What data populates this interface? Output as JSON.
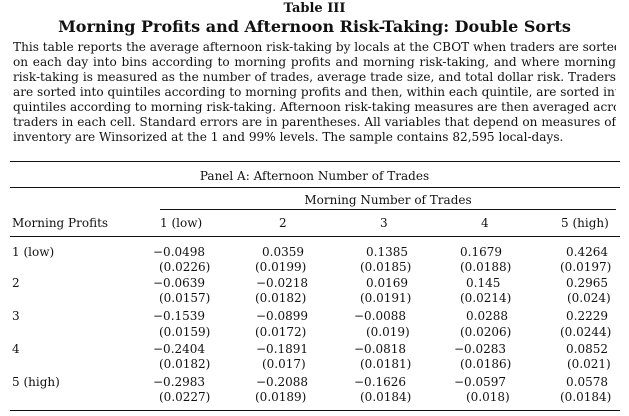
{
  "header": {
    "label": "Table III",
    "title": "Morning Profits and Afternoon Risk-Taking: Double Sorts"
  },
  "caption": [
    "This table reports the average afternoon risk-taking by locals at the CBOT when traders are sorted",
    "on each day into bins according to morning profits and morning risk-taking, and where morning",
    "risk-taking is measured as the number of trades, average trade size, and total dollar risk. Traders",
    "are sorted into quintiles according to morning profits and then, within each quintile, are sorted into",
    "quintiles according to morning risk-taking. Afternoon risk-taking measures are then averaged across",
    "traders in each cell. Standard errors are in parentheses. All variables that depend on measures of",
    "inventory are Winsorized at the 1 and 99% levels. The sample contains 82,595 local-days."
  ],
  "panel": {
    "title": "Panel A: Afternoon Number of Trades",
    "column_group": "Morning Number of Trades",
    "row_header": "Morning Profits",
    "columns": [
      "1 (low)",
      "2",
      "3",
      "4",
      "5 (high)"
    ],
    "rows": [
      {
        "label": "1 (low)",
        "values": [
          "−0.0498",
          "0.0359",
          "0.1385",
          "0.1679",
          "0.4264"
        ],
        "errors": [
          "(0.0226)",
          "(0.0199)",
          "(0.0185)",
          "(0.0188)",
          "(0.0197)"
        ]
      },
      {
        "label": "2",
        "values": [
          "−0.0639",
          "−0.0218",
          "0.0169",
          "0.145",
          "0.2965"
        ],
        "errors": [
          "(0.0157)",
          "(0.0182)",
          "(0.0191)",
          "(0.0214)",
          "(0.024)"
        ]
      },
      {
        "label": "3",
        "values": [
          "−0.1539",
          "−0.0899",
          "−0.0088",
          "0.0288",
          "0.2229"
        ],
        "errors": [
          "(0.0159)",
          "(0.0172)",
          "(0.019)",
          "(0.0206)",
          "(0.0244)"
        ]
      },
      {
        "label": "4",
        "values": [
          "−0.2404",
          "−0.1891",
          "−0.0818",
          "−0.0283",
          "0.0852"
        ],
        "errors": [
          "(0.0182)",
          "(0.017)",
          "(0.0181)",
          "(0.0186)",
          "(0.021)"
        ]
      },
      {
        "label": "5 (high)",
        "values": [
          "−0.2983",
          "−0.2088",
          "−0.1626",
          "−0.0597",
          "0.0578"
        ],
        "errors": [
          "(0.0227)",
          "(0.0189)",
          "(0.0184)",
          "(0.018)",
          "(0.0184)"
        ]
      }
    ]
  }
}
